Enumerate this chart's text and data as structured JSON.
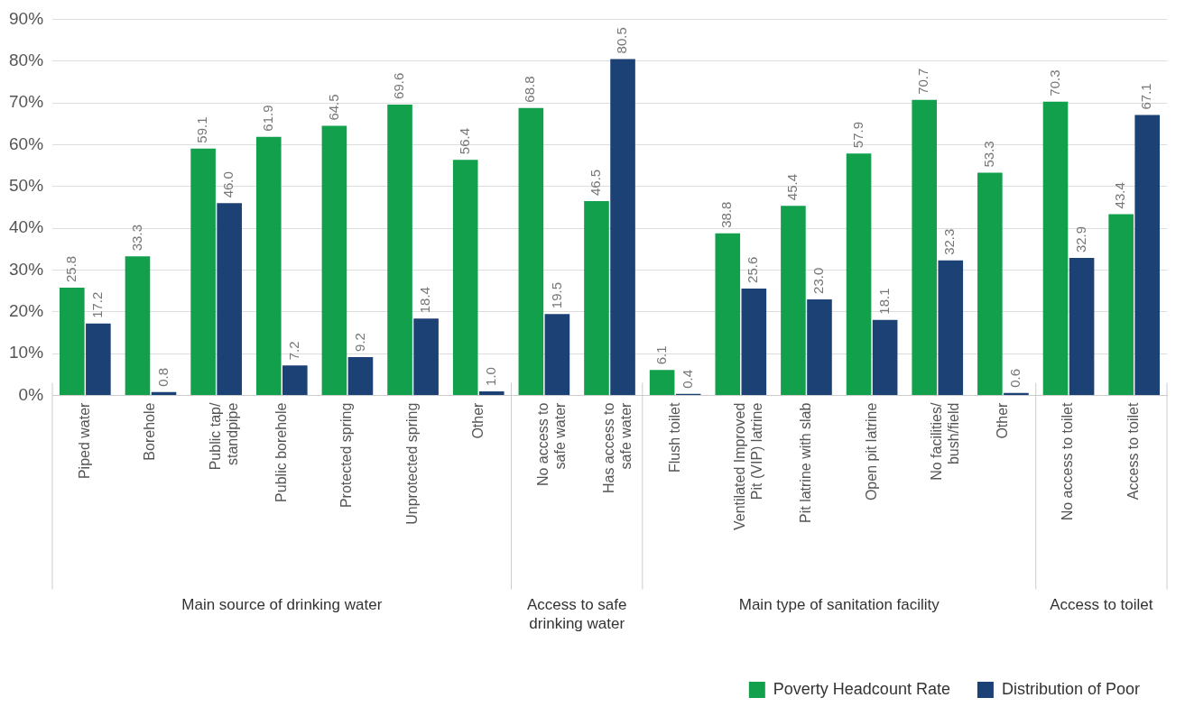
{
  "chart_data": {
    "type": "bar",
    "categories": [
      "Piped water",
      "Borehole",
      "Public tap/\nstandpipe",
      "Public borehole",
      "Protected spring",
      "Unprotected spring",
      "Other",
      "No access to\nsafe water",
      "Has access to\nsafe water",
      "Flush toilet",
      "Ventilated Improved\nPit (VIP) latrine",
      "Pit latrine with slab",
      "Open pit latrine",
      "No facilities/\nbush/field",
      "Other",
      "No access to toilet",
      "Access to toilet"
    ],
    "series": [
      {
        "name": "Poverty Headcount Rate",
        "color": "#12a04c",
        "values": [
          25.8,
          33.3,
          59.1,
          61.9,
          64.5,
          69.6,
          56.4,
          68.8,
          46.5,
          6.1,
          38.8,
          45.4,
          57.9,
          70.7,
          53.3,
          70.3,
          43.4
        ],
        "value_labels": [
          "25.8",
          "33.3",
          "59.1",
          "61.9",
          "64.5",
          "69.6",
          "56.4",
          "68.8",
          "46.5",
          "6.1",
          "38.8",
          "45.4",
          "57.9",
          "70.7",
          "53.3",
          "70.3",
          "43.4"
        ]
      },
      {
        "name": "Distribution of Poor",
        "color": "#1c4175",
        "values": [
          17.2,
          0.8,
          46,
          7.2,
          9.2,
          18.4,
          1,
          19.5,
          80.5,
          0.4,
          25.6,
          23,
          18.1,
          32.3,
          0.6,
          32.9,
          67.1
        ],
        "value_labels": [
          "17.2",
          "0.8",
          "46.0",
          "7.2",
          "9.2",
          "18.4",
          "1.0",
          "19.5",
          "80.5",
          "0.4",
          "25.6",
          "23.0",
          "18.1",
          "32.3",
          "0.6",
          "32.9",
          "67.1"
        ]
      }
    ],
    "ylim": [
      0,
      90
    ],
    "yticks": [
      {
        "value": 0,
        "label": "0%"
      },
      {
        "value": 10,
        "label": "10%"
      },
      {
        "value": 20,
        "label": "20%"
      },
      {
        "value": 30,
        "label": "30%"
      },
      {
        "value": 40,
        "label": "40%"
      },
      {
        "value": 50,
        "label": "50%"
      },
      {
        "value": 60,
        "label": "60%"
      },
      {
        "value": 70,
        "label": "70%"
      },
      {
        "value": 80,
        "label": "80%"
      },
      {
        "value": 90,
        "label": "90%"
      }
    ],
    "grid": "y",
    "legend": "bottom right",
    "annotations": [
      "Main source of drinking water",
      "Access to safe\ndrinking water",
      "Main type of sanitation facility",
      "Access to toilet"
    ]
  }
}
